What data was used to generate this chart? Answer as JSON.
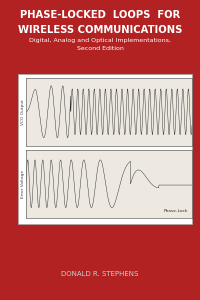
{
  "bg_color": "#b22222",
  "title_line1": "PHASE-LOCKED  LOOPS  FOR",
  "title_line2": "WIRELESS COMMUNICATIONS",
  "subtitle_line1": "Digital, Analog and Optical Implementations,",
  "subtitle_line2": "Second Edition",
  "author": "DONALD R. STEPHENS",
  "title_color": "#ffffff",
  "subtitle_color": "#ffffff",
  "author_color": "#cccccc",
  "signal_color": "#222222"
}
